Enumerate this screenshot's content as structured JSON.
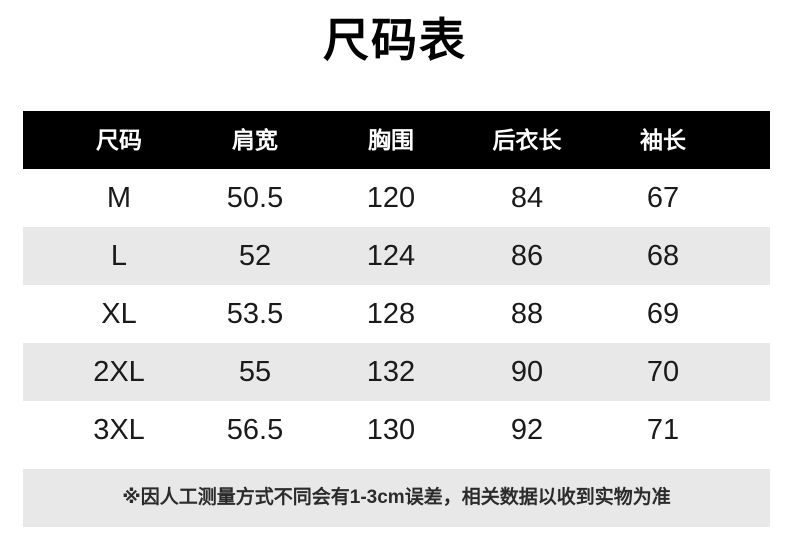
{
  "chart_data": {
    "type": "table",
    "title": "尺码表",
    "columns": [
      "尺码",
      "肩宽",
      "胸围",
      "后衣长",
      "袖长"
    ],
    "rows": [
      [
        "M",
        "50.5",
        "120",
        "84",
        "67"
      ],
      [
        "L",
        "52",
        "124",
        "86",
        "68"
      ],
      [
        "XL",
        "53.5",
        "128",
        "88",
        "69"
      ],
      [
        "2XL",
        "55",
        "132",
        "90",
        "70"
      ],
      [
        "3XL",
        "56.5",
        "130",
        "92",
        "71"
      ]
    ],
    "note": "※因人工测量方式不同会有1-3cm误差，相关数据以收到实物为准"
  },
  "colors": {
    "header_bg": "#000000",
    "header_text": "#ffffff",
    "zebra_row_bg": "#e8e8e8",
    "note_bg": "#e8e8e8",
    "body_text": "#1a1a1a"
  }
}
